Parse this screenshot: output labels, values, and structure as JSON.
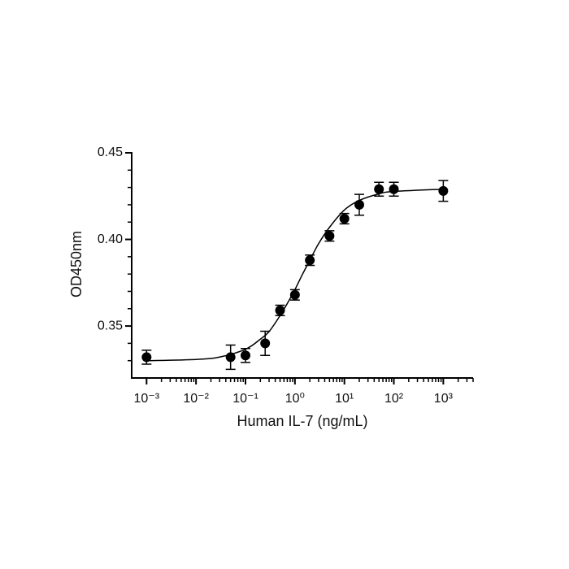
{
  "chart_data": {
    "type": "scatter",
    "xlabel": "Human IL-7 (ng/mL)",
    "ylabel": "OD450nm",
    "xscale": "log",
    "color": "#000000",
    "x": [
      0.001,
      0.05,
      0.1,
      0.25,
      0.5,
      1,
      2,
      5,
      10,
      20,
      50,
      100,
      1000
    ],
    "values": [
      0.332,
      0.332,
      0.333,
      0.34,
      0.359,
      0.368,
      0.388,
      0.402,
      0.412,
      0.42,
      0.429,
      0.429,
      0.428
    ],
    "errors": [
      0.004,
      0.007,
      0.004,
      0.007,
      0.003,
      0.003,
      0.003,
      0.003,
      0.003,
      0.006,
      0.004,
      0.004,
      0.006
    ],
    "curve": {
      "x": [
        0.001,
        0.01,
        0.03,
        0.1,
        0.2,
        0.3,
        0.5,
        0.7,
        1,
        1.4,
        2,
        3,
        5,
        10,
        20,
        50,
        100,
        1000
      ],
      "y": [
        0.33,
        0.3307,
        0.3321,
        0.3366,
        0.3424,
        0.3468,
        0.356,
        0.363,
        0.371,
        0.3795,
        0.388,
        0.3975,
        0.407,
        0.417,
        0.4225,
        0.4263,
        0.4277,
        0.429
      ]
    },
    "xlim": [
      0.0005,
      4000
    ],
    "ylim": [
      0.32,
      0.45
    ],
    "xticks": [
      {
        "value": 0.001,
        "label": "10⁻³"
      },
      {
        "value": 0.01,
        "label": "10⁻²"
      },
      {
        "value": 0.1,
        "label": "10⁻¹"
      },
      {
        "value": 1,
        "label": "10⁰"
      },
      {
        "value": 10,
        "label": "10¹"
      },
      {
        "value": 100,
        "label": "10²"
      },
      {
        "value": 1000,
        "label": "10³"
      }
    ],
    "xminorticks": [
      0.002,
      0.003,
      0.004,
      0.005,
      0.006,
      0.007,
      0.008,
      0.009,
      0.02,
      0.03,
      0.04,
      0.05,
      0.06,
      0.07,
      0.08,
      0.09,
      0.2,
      0.3,
      0.4,
      0.5,
      0.6,
      0.7,
      0.8,
      0.9,
      2,
      3,
      4,
      5,
      6,
      7,
      8,
      9,
      20,
      30,
      40,
      50,
      60,
      70,
      80,
      90,
      200,
      300,
      400,
      500,
      600,
      700,
      800,
      900,
      2000,
      3000,
      4000
    ],
    "yticks": [
      {
        "value": 0.35,
        "label": "0.35"
      },
      {
        "value": 0.4,
        "label": "0.40"
      },
      {
        "value": 0.45,
        "label": "0.45"
      }
    ],
    "yminorticks": [
      0.33,
      0.34,
      0.36,
      0.37,
      0.38,
      0.39,
      0.41,
      0.42,
      0.43,
      0.44
    ],
    "grid": false
  }
}
